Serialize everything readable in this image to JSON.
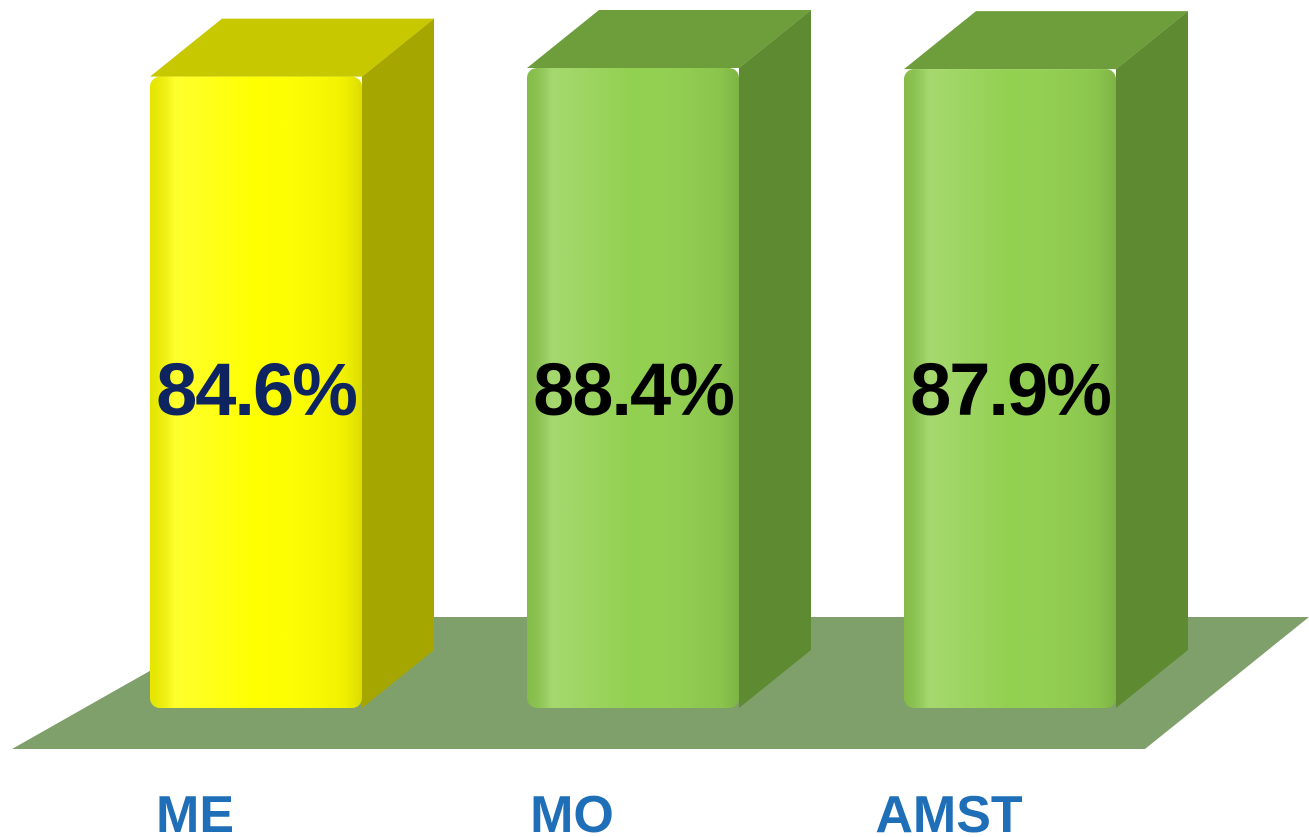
{
  "chart_data": {
    "type": "bar",
    "categories": [
      "ME",
      "MO",
      "AMST"
    ],
    "values": [
      84.6,
      88.4,
      87.9
    ],
    "labels": [
      "84.6%",
      "88.4%",
      "87.9%"
    ],
    "value_unit": "%",
    "title": "",
    "xlabel": "",
    "ylabel": "",
    "style": "3d",
    "grid": false,
    "legend": "none",
    "bar_colors": [
      {
        "front": "#ffff00",
        "side": "#a6a600",
        "top": "#c8c800",
        "label": "#0d2460"
      },
      {
        "front": "#92d050",
        "side": "#5e8a32",
        "top": "#6e9e3c",
        "label": "#000000"
      },
      {
        "front": "#92d050",
        "side": "#5e8a32",
        "top": "#6e9e3c",
        "label": "#000000"
      }
    ],
    "floor_color": "#7fa06a",
    "category_label_color": "#1f6fb8"
  }
}
